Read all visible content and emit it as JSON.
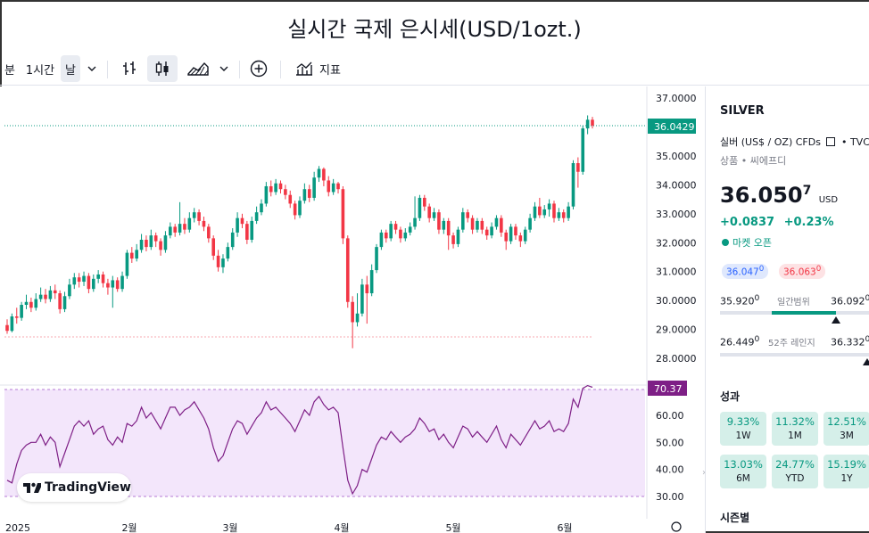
{
  "page_title": "실시간 국제 은시세(USD/1ozt.)",
  "toolbar": {
    "minute_label": "분",
    "interval_1h": "1시간",
    "interval_day": "날",
    "indicators_label": "지표"
  },
  "price_axis": {
    "ticks": [
      "37.0000",
      "36.0000",
      "35.0000",
      "34.0000",
      "33.0000",
      "32.0000",
      "31.0000",
      "30.0000",
      "29.0000",
      "28.0000"
    ],
    "current_price_label": "36.0429"
  },
  "rsi_axis": {
    "ticks": [
      "60.00",
      "50.00",
      "40.00",
      "30.00"
    ],
    "current_label": "70.37"
  },
  "time_axis": [
    "2025",
    "2월",
    "3월",
    "4월",
    "5월",
    "6월"
  ],
  "watermark": "TradingView",
  "colors": {
    "up": "#089981",
    "down": "#f23645",
    "rsi": "#7e1f86",
    "rsi_band": "#f3e6fb",
    "accent": "#2962ff"
  },
  "symbol_panel": {
    "symbol": "SILVER",
    "description": "실버 (US$ / OZ) CFDs",
    "source": "TVC",
    "category": "상품 • 씨에프디",
    "price_main": "36.050",
    "price_sup": "7",
    "currency": "USD",
    "change": "+0.0837",
    "change_pct": "+0.23%",
    "market_status": "마켓 오픈",
    "bid": "36.047",
    "bid_sup": "0",
    "ask": "36.063",
    "ask_sup": "0",
    "day_low": "35.920",
    "day_low_sup": "0",
    "day_range_label": "일간범위",
    "day_high": "36.092",
    "day_high_sup": "0",
    "week52_low": "26.449",
    "week52_low_sup": "0",
    "week52_label": "52주 레인지",
    "week52_high": "36.332",
    "week52_high_sup": "0",
    "performance_title": "성과",
    "performance": [
      {
        "value": "9.33%",
        "label": "1W"
      },
      {
        "value": "11.32%",
        "label": "1M"
      },
      {
        "value": "12.51%",
        "label": "3M"
      },
      {
        "value": "13.03%",
        "label": "6M"
      },
      {
        "value": "24.77%",
        "label": "YTD"
      },
      {
        "value": "15.19%",
        "label": "1Y"
      }
    ],
    "seasonals_title": "시즌별"
  },
  "chart_data": {
    "type": "candlestick",
    "price_range": [
      27.6,
      37.3
    ],
    "rsi_range": [
      28,
      72
    ],
    "candles": [
      [
        29.15,
        28.95,
        29.35,
        28.85
      ],
      [
        28.95,
        29.45,
        29.55,
        28.9
      ],
      [
        29.45,
        29.4,
        29.75,
        29.2
      ],
      [
        29.4,
        29.85,
        29.95,
        29.3
      ],
      [
        29.85,
        29.95,
        30.2,
        29.7
      ],
      [
        29.95,
        29.75,
        30.1,
        29.6
      ],
      [
        29.75,
        30.05,
        30.25,
        29.65
      ],
      [
        30.05,
        30.2,
        30.45,
        29.95
      ],
      [
        30.2,
        30.05,
        30.4,
        29.9
      ],
      [
        30.05,
        30.35,
        30.5,
        29.95
      ],
      [
        30.35,
        30.25,
        30.55,
        30.05
      ],
      [
        30.25,
        29.7,
        30.35,
        29.55
      ],
      [
        29.7,
        30.15,
        30.3,
        29.6
      ],
      [
        30.15,
        30.55,
        30.75,
        30.05
      ],
      [
        30.55,
        30.8,
        30.95,
        30.4
      ],
      [
        30.8,
        30.65,
        30.95,
        30.45
      ],
      [
        30.65,
        30.85,
        31.0,
        30.5
      ],
      [
        30.85,
        30.4,
        30.95,
        30.25
      ],
      [
        30.4,
        30.75,
        30.9,
        30.3
      ],
      [
        30.75,
        30.9,
        31.05,
        30.6
      ],
      [
        30.9,
        30.6,
        31.0,
        30.45
      ],
      [
        30.6,
        30.45,
        30.75,
        30.2
      ],
      [
        30.45,
        30.7,
        30.85,
        29.75
      ],
      [
        30.7,
        30.4,
        30.8,
        30.3
      ],
      [
        30.4,
        30.85,
        31.0,
        30.3
      ],
      [
        30.85,
        31.65,
        31.75,
        30.75
      ],
      [
        31.65,
        31.45,
        31.85,
        31.3
      ],
      [
        31.45,
        31.75,
        31.95,
        31.35
      ],
      [
        31.75,
        32.1,
        32.3,
        31.65
      ],
      [
        32.1,
        31.85,
        32.25,
        31.7
      ],
      [
        31.85,
        32.25,
        32.45,
        31.75
      ],
      [
        32.25,
        32.05,
        32.35,
        31.85
      ],
      [
        32.05,
        31.75,
        32.15,
        31.55
      ],
      [
        31.75,
        32.25,
        32.4,
        31.65
      ],
      [
        32.25,
        32.55,
        32.7,
        32.15
      ],
      [
        32.55,
        32.35,
        32.65,
        32.2
      ],
      [
        32.35,
        32.65,
        33.4,
        32.25
      ],
      [
        32.65,
        32.45,
        32.85,
        32.3
      ],
      [
        32.45,
        32.85,
        33.05,
        32.35
      ],
      [
        32.85,
        33.05,
        33.2,
        32.7
      ],
      [
        33.05,
        32.75,
        33.15,
        32.6
      ],
      [
        32.75,
        32.55,
        32.9,
        32.4
      ],
      [
        32.55,
        32.15,
        32.65,
        32.0
      ],
      [
        32.15,
        31.55,
        32.25,
        31.4
      ],
      [
        31.55,
        31.15,
        31.75,
        31.0
      ],
      [
        31.15,
        31.45,
        31.6,
        30.95
      ],
      [
        31.45,
        31.85,
        32.0,
        31.35
      ],
      [
        31.85,
        32.35,
        32.5,
        31.75
      ],
      [
        32.35,
        32.85,
        33.05,
        32.2
      ],
      [
        32.85,
        32.65,
        33.0,
        32.5
      ],
      [
        32.65,
        32.1,
        32.75,
        31.95
      ],
      [
        32.1,
        32.75,
        32.9,
        32.0
      ],
      [
        32.75,
        33.05,
        33.25,
        32.65
      ],
      [
        33.05,
        33.35,
        33.5,
        32.95
      ],
      [
        33.35,
        33.95,
        34.1,
        33.25
      ],
      [
        33.95,
        33.75,
        34.15,
        33.6
      ],
      [
        33.75,
        34.05,
        34.2,
        33.65
      ],
      [
        34.05,
        33.85,
        34.15,
        33.7
      ],
      [
        33.85,
        33.65,
        34.0,
        33.5
      ],
      [
        33.65,
        33.35,
        33.8,
        33.2
      ],
      [
        33.35,
        32.95,
        33.45,
        32.8
      ],
      [
        32.95,
        33.45,
        33.6,
        32.85
      ],
      [
        33.45,
        33.85,
        34.05,
        33.35
      ],
      [
        33.85,
        33.55,
        34.0,
        33.4
      ],
      [
        33.55,
        34.25,
        34.45,
        33.45
      ],
      [
        34.25,
        34.55,
        34.65,
        34.1
      ],
      [
        34.55,
        34.15,
        34.6,
        33.95
      ],
      [
        34.15,
        33.75,
        34.3,
        33.6
      ],
      [
        33.75,
        34.05,
        34.2,
        33.65
      ],
      [
        34.05,
        33.85,
        34.1,
        33.7
      ],
      [
        33.85,
        32.15,
        33.95,
        31.95
      ],
      [
        32.15,
        29.95,
        32.25,
        29.75
      ],
      [
        29.95,
        29.25,
        30.15,
        28.35
      ],
      [
        29.25,
        29.55,
        30.25,
        29.1
      ],
      [
        29.55,
        30.55,
        30.75,
        29.45
      ],
      [
        30.55,
        30.25,
        30.85,
        29.2
      ],
      [
        30.25,
        31.05,
        31.25,
        30.15
      ],
      [
        31.05,
        31.85,
        31.95,
        30.95
      ],
      [
        31.85,
        32.35,
        32.45,
        31.75
      ],
      [
        32.35,
        32.15,
        32.45,
        32.0
      ],
      [
        32.15,
        32.65,
        32.75,
        32.05
      ],
      [
        32.65,
        32.45,
        32.75,
        32.3
      ],
      [
        32.45,
        32.15,
        32.55,
        32.0
      ],
      [
        32.15,
        32.35,
        32.5,
        32.05
      ],
      [
        32.35,
        32.55,
        32.7,
        32.25
      ],
      [
        32.55,
        32.85,
        33.6,
        32.45
      ],
      [
        32.85,
        33.55,
        33.65,
        32.75
      ],
      [
        33.55,
        33.25,
        33.65,
        33.1
      ],
      [
        33.25,
        32.85,
        33.35,
        32.7
      ],
      [
        32.85,
        33.05,
        33.2,
        32.75
      ],
      [
        33.05,
        32.45,
        33.15,
        32.3
      ],
      [
        32.45,
        32.75,
        32.85,
        32.3
      ],
      [
        32.75,
        32.25,
        32.85,
        31.75
      ],
      [
        32.25,
        31.95,
        32.35,
        31.8
      ],
      [
        31.95,
        32.45,
        32.55,
        31.85
      ],
      [
        32.45,
        33.05,
        33.2,
        32.35
      ],
      [
        33.05,
        32.85,
        33.15,
        32.7
      ],
      [
        32.85,
        32.45,
        32.95,
        32.3
      ],
      [
        32.45,
        32.75,
        32.85,
        32.35
      ],
      [
        32.75,
        32.45,
        32.85,
        32.3
      ],
      [
        32.45,
        32.25,
        32.55,
        32.1
      ],
      [
        32.25,
        32.55,
        32.7,
        32.15
      ],
      [
        32.55,
        32.85,
        32.95,
        32.45
      ],
      [
        32.85,
        32.35,
        32.95,
        32.2
      ],
      [
        32.35,
        32.05,
        32.45,
        31.75
      ],
      [
        32.05,
        32.55,
        32.65,
        31.95
      ],
      [
        32.55,
        32.25,
        32.65,
        32.1
      ],
      [
        32.25,
        32.05,
        32.35,
        31.85
      ],
      [
        32.05,
        32.45,
        32.55,
        31.95
      ],
      [
        32.45,
        32.85,
        33.0,
        32.35
      ],
      [
        32.85,
        33.25,
        33.4,
        32.75
      ],
      [
        33.25,
        32.95,
        33.55,
        32.85
      ],
      [
        32.95,
        33.15,
        33.3,
        32.85
      ],
      [
        33.15,
        33.35,
        33.5,
        32.9
      ],
      [
        33.35,
        32.85,
        33.45,
        32.7
      ],
      [
        32.85,
        33.05,
        33.2,
        32.75
      ],
      [
        33.05,
        32.85,
        33.15,
        32.7
      ],
      [
        32.85,
        33.25,
        33.4,
        32.75
      ],
      [
        33.25,
        34.75,
        34.85,
        33.15
      ],
      [
        34.75,
        34.45,
        34.95,
        33.9
      ],
      [
        34.45,
        35.95,
        36.05,
        34.35
      ],
      [
        35.95,
        36.25,
        36.4,
        35.75
      ],
      [
        36.25,
        36.05,
        36.35,
        35.95
      ]
    ],
    "rsi": [
      36,
      35,
      42,
      47,
      49,
      50,
      50,
      53,
      49,
      52,
      50,
      41,
      46,
      51,
      56,
      58,
      56,
      58,
      53,
      55,
      56,
      51,
      49,
      52,
      50,
      57,
      56,
      58,
      63,
      59,
      61,
      58,
      55,
      59,
      63,
      63,
      60,
      62,
      63,
      65,
      62,
      59,
      55,
      48,
      43,
      45,
      50,
      55,
      58,
      57,
      53,
      56,
      59,
      61,
      65,
      62,
      63,
      61,
      59,
      57,
      54,
      58,
      62,
      60,
      65,
      67,
      64,
      62,
      63,
      61,
      48,
      36,
      31,
      34,
      40,
      39,
      44,
      49,
      52,
      51,
      54,
      52,
      50,
      52,
      53,
      55,
      59,
      57,
      54,
      55,
      51,
      53,
      50,
      48,
      52,
      56,
      55,
      52,
      54,
      52,
      50,
      53,
      56,
      51,
      48,
      53,
      51,
      49,
      52,
      55,
      58,
      55,
      56,
      58,
      54,
      55,
      54,
      57,
      66,
      63,
      70,
      71,
      70.37
    ]
  }
}
